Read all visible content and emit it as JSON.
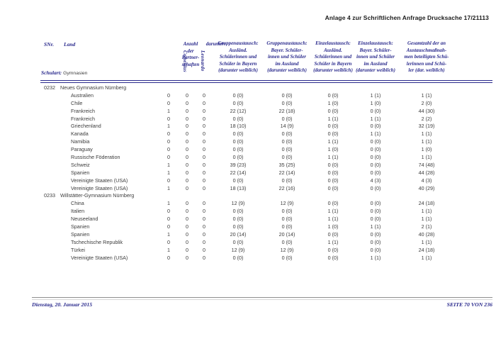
{
  "colors": {
    "navy": "#29298c",
    "body_text": "#3c3c3c",
    "footer_line_gray": "#a9a9a9"
  },
  "page": {
    "title": "Anlage 4 zur Schriftlichen Anfrage Drucksache 17/21113",
    "footer": {
      "date": "Dienstag, 20. Januar 2015",
      "page_label": "SEITE 70 VON 236"
    }
  },
  "table": {
    "headers": {
      "snr": "SNr.",
      "land": "Land",
      "anzahl": "Anzahl\nder\nPartner-\nschaften",
      "darunter": "darunter:",
      "comenius": "Comenius",
      "leonardo": "Leonardo",
      "gruppen_ausland": "Gruppenaustausch:\nAusländ.\nSchülerinnen und\nSchüler in Bayern\n(darunter weiblich)",
      "gruppen_bayern": "Gruppenaustausch:\nBayer. Schüler-\ninnen und Schüler\nim Ausland\n(darunter weiblich)",
      "einzel_ausland": "Einzelaustausch:\nAusländ.\nSchülerinnen und\nSchüler in Bayern\n(darunter weiblich)",
      "einzel_bayern": "Einzelaustausch:\nBayer. Schüler-\ninnen und Schüler\nim Ausland\n(darunter weiblich)",
      "gesamt": "Gesamtzahl der an\nAustauschmaßnah-\nmen beteiligten Schü-\nlerinnen und Schü-\nler (dar. weiblich)"
    },
    "schulart_label": "Schulart:",
    "schulart_value": "Gymnasien",
    "blocks": [
      {
        "id": "0232",
        "school": "Neues Gymnasium Nürnberg",
        "rows": [
          [
            "Australien",
            "0",
            "0",
            "0",
            "0 (0)",
            "0 (0)",
            "0 (0)",
            "1 (1)",
            "1 (1)"
          ],
          [
            "Chile",
            "0",
            "0",
            "0",
            "0 (0)",
            "0 (0)",
            "1 (0)",
            "1 (0)",
            "2 (0)"
          ],
          [
            "Frankreich",
            "1",
            "0",
            "0",
            "22 (12)",
            "22 (18)",
            "0 (0)",
            "0 (0)",
            "44 (30)"
          ],
          [
            "Frankreich",
            "0",
            "0",
            "0",
            "0 (0)",
            "0 (0)",
            "1 (1)",
            "1 (1)",
            "2 (2)"
          ],
          [
            "Griechenland",
            "1",
            "0",
            "0",
            "18 (10)",
            "14 (9)",
            "0 (0)",
            "0 (0)",
            "32 (19)"
          ],
          [
            "Kanada",
            "0",
            "0",
            "0",
            "0 (0)",
            "0 (0)",
            "0 (0)",
            "1 (1)",
            "1 (1)"
          ],
          [
            "Namibia",
            "0",
            "0",
            "0",
            "0 (0)",
            "0 (0)",
            "1 (1)",
            "0 (0)",
            "1 (1)"
          ],
          [
            "Paraguay",
            "0",
            "0",
            "0",
            "0 (0)",
            "0 (0)",
            "1 (0)",
            "0 (0)",
            "1 (0)"
          ],
          [
            "Russische Föderation",
            "0",
            "0",
            "0",
            "0 (0)",
            "0 (0)",
            "1 (1)",
            "0 (0)",
            "1 (1)"
          ],
          [
            "Schweiz",
            "1",
            "0",
            "0",
            "39 (23)",
            "35 (25)",
            "0 (0)",
            "0 (0)",
            "74 (48)"
          ],
          [
            "Spanien",
            "1",
            "0",
            "0",
            "22 (14)",
            "22 (14)",
            "0 (0)",
            "0 (0)",
            "44 (28)"
          ],
          [
            "Vereinigte Staaten (USA)",
            "0",
            "0",
            "0",
            "0 (0)",
            "0 (0)",
            "0 (0)",
            "4 (3)",
            "4 (3)"
          ],
          [
            "Vereinigte Staaten (USA)",
            "1",
            "0",
            "0",
            "18 (13)",
            "22 (16)",
            "0 (0)",
            "0 (0)",
            "40 (29)"
          ]
        ]
      },
      {
        "id": "0233",
        "school": "Willstätter-Gymnasium Nürnberg",
        "rows": [
          [
            "China",
            "1",
            "0",
            "0",
            "12 (9)",
            "12 (9)",
            "0 (0)",
            "0 (0)",
            "24 (18)"
          ],
          [
            "Italien",
            "0",
            "0",
            "0",
            "0 (0)",
            "0 (0)",
            "1 (1)",
            "0 (0)",
            "1 (1)"
          ],
          [
            "Neuseeland",
            "0",
            "0",
            "0",
            "0 (0)",
            "0 (0)",
            "1 (1)",
            "0 (0)",
            "1 (1)"
          ],
          [
            "Spanien",
            "0",
            "0",
            "0",
            "0 (0)",
            "0 (0)",
            "1 (0)",
            "1 (1)",
            "2 (1)"
          ],
          [
            "Spanien",
            "1",
            "0",
            "0",
            "20 (14)",
            "20 (14)",
            "0 (0)",
            "0 (0)",
            "40 (28)"
          ],
          [
            "Tschechische Republik",
            "0",
            "0",
            "0",
            "0 (0)",
            "0 (0)",
            "1 (1)",
            "0 (0)",
            "1 (1)"
          ],
          [
            "Türkei",
            "1",
            "0",
            "0",
            "12 (9)",
            "12 (9)",
            "0 (0)",
            "0 (0)",
            "24 (18)"
          ],
          [
            "Vereinigte Staaten (USA)",
            "0",
            "0",
            "0",
            "0 (0)",
            "0 (0)",
            "0 (0)",
            "1 (1)",
            "1 (1)"
          ]
        ]
      }
    ]
  }
}
